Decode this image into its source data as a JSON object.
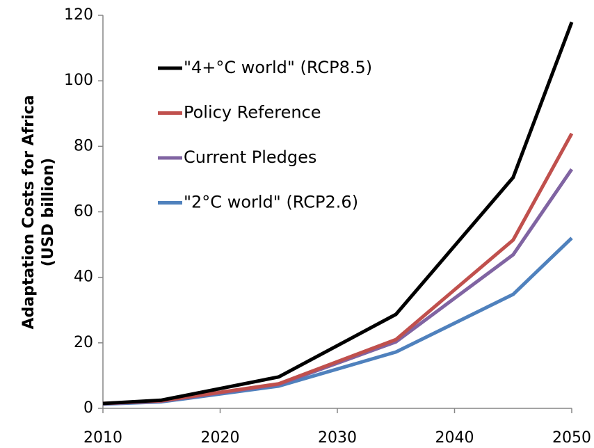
{
  "chart_data": {
    "type": "line",
    "y_label": [
      "Adaptation Costs for Africa",
      "(USD billion)"
    ],
    "x": [
      2010,
      2015,
      2025,
      2035,
      2045,
      2050
    ],
    "series": [
      {
        "name": "\"4+°C world\" (RCP8.5)",
        "color": "#000000",
        "values": [
          1.5,
          2.5,
          9.6,
          28.7,
          70.5,
          117.9
        ]
      },
      {
        "name": "Policy Reference",
        "color": "#c0504d",
        "values": [
          1.5,
          2.3,
          7.5,
          21,
          51.4,
          83.9
        ]
      },
      {
        "name": "Current Pledges",
        "color": "#8064a2",
        "values": [
          1.4,
          2.2,
          7.3,
          20.3,
          46.9,
          73
        ]
      },
      {
        "name": "\"2°C world\" (RCP2.6)",
        "color": "#4f81bd",
        "values": [
          1.3,
          2,
          6.8,
          17.2,
          34.8,
          52
        ]
      }
    ],
    "xlim": [
      2010,
      2050
    ],
    "xticks": [
      2010,
      2020,
      2030,
      2040,
      2050
    ],
    "ylim": [
      0,
      120
    ],
    "yticks": [
      0,
      20,
      40,
      60,
      80,
      100,
      120
    ],
    "grid": false,
    "legend": "upper left"
  }
}
